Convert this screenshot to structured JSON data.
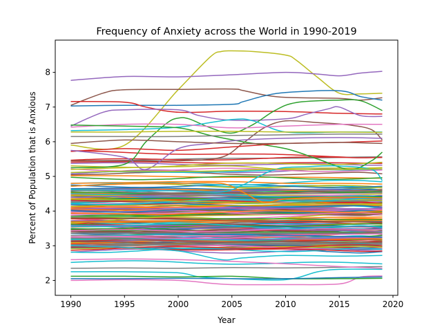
{
  "chart_data": {
    "type": "line",
    "title": "Frequency of Anxiety across the World in 1990-2019",
    "xlabel": "Year",
    "ylabel": "Percent of Population that is Anxious",
    "xlim": [
      1988.55,
      2020.45
    ],
    "ylim": [
      1.57,
      8.93
    ],
    "xticks": [
      1990,
      1995,
      2000,
      2005,
      2010,
      2015,
      2020
    ],
    "yticks": [
      2,
      3,
      4,
      5,
      6,
      7,
      8
    ],
    "grid": false,
    "legend": "none",
    "x_range": [
      1990,
      2019
    ],
    "highlighted_series": [
      {
        "color": "#bcbd22",
        "points": [
          [
            1990,
            5.9
          ],
          [
            1995,
            5.9
          ],
          [
            2000,
            7.5
          ],
          [
            2003,
            8.45
          ],
          [
            2004,
            8.6
          ],
          [
            2005,
            8.62
          ],
          [
            2007,
            8.6
          ],
          [
            2010,
            8.5
          ],
          [
            2011,
            8.35
          ],
          [
            2013,
            7.85
          ],
          [
            2015,
            7.4
          ],
          [
            2017,
            7.38
          ],
          [
            2019,
            7.4
          ]
        ]
      },
      {
        "color": "#9467bd",
        "points": [
          [
            1990,
            7.77
          ],
          [
            1995,
            7.88
          ],
          [
            2000,
            7.87
          ],
          [
            2005,
            7.93
          ],
          [
            2010,
            8.0
          ],
          [
            2013,
            7.95
          ],
          [
            2015,
            7.9
          ],
          [
            2017,
            7.98
          ],
          [
            2019,
            8.03
          ]
        ]
      },
      {
        "color": "#8c564b",
        "points": [
          [
            1990,
            7.05
          ],
          [
            1993,
            7.4
          ],
          [
            1995,
            7.5
          ],
          [
            2000,
            7.51
          ],
          [
            2005,
            7.52
          ],
          [
            2006,
            7.48
          ],
          [
            2008,
            7.35
          ],
          [
            2010,
            7.28
          ],
          [
            2015,
            7.25
          ],
          [
            2017,
            7.2
          ],
          [
            2019,
            7.27
          ]
        ]
      },
      {
        "color": "#1f77b4",
        "points": [
          [
            1990,
            7.03
          ],
          [
            1995,
            7.05
          ],
          [
            2000,
            7.05
          ],
          [
            2005,
            7.08
          ],
          [
            2006,
            7.15
          ],
          [
            2008,
            7.32
          ],
          [
            2010,
            7.42
          ],
          [
            2015,
            7.47
          ],
          [
            2017,
            7.3
          ],
          [
            2019,
            7.2
          ]
        ]
      },
      {
        "color": "#d62728",
        "points": [
          [
            1990,
            7.16
          ],
          [
            1995,
            7.14
          ],
          [
            1997,
            7.0
          ],
          [
            2000,
            6.85
          ],
          [
            2005,
            6.88
          ],
          [
            2010,
            6.87
          ],
          [
            2015,
            6.82
          ],
          [
            2019,
            6.8
          ]
        ]
      },
      {
        "color": "#9467bd",
        "points": [
          [
            1990,
            6.45
          ],
          [
            1993,
            6.85
          ],
          [
            1995,
            6.92
          ],
          [
            2000,
            6.92
          ],
          [
            2002,
            6.75
          ],
          [
            2005,
            6.62
          ],
          [
            2010,
            6.66
          ],
          [
            2012,
            6.8
          ],
          [
            2014,
            6.95
          ],
          [
            2015,
            7.0
          ],
          [
            2017,
            6.75
          ],
          [
            2019,
            6.73
          ]
        ]
      },
      {
        "color": "#2ca02c",
        "points": [
          [
            1990,
            5.25
          ],
          [
            1995,
            5.35
          ],
          [
            1997,
            6.0
          ],
          [
            1999,
            6.55
          ],
          [
            2000,
            6.68
          ],
          [
            2001,
            6.66
          ],
          [
            2003,
            6.4
          ],
          [
            2005,
            6.25
          ],
          [
            2007,
            6.5
          ],
          [
            2009,
            6.9
          ],
          [
            2011,
            7.13
          ],
          [
            2015,
            7.2
          ],
          [
            2017,
            7.18
          ],
          [
            2019,
            6.9
          ]
        ]
      },
      {
        "color": "#17becf",
        "points": [
          [
            1990,
            6.32
          ],
          [
            1995,
            6.35
          ],
          [
            2000,
            6.42
          ],
          [
            2005,
            6.64
          ],
          [
            2007,
            6.6
          ],
          [
            2010,
            6.28
          ],
          [
            2015,
            6.28
          ],
          [
            2019,
            6.28
          ]
        ]
      },
      {
        "color": "#8c564b",
        "points": [
          [
            1990,
            5.45
          ],
          [
            1995,
            5.45
          ],
          [
            2000,
            5.45
          ],
          [
            2004,
            5.55
          ],
          [
            2006,
            5.95
          ],
          [
            2008,
            6.4
          ],
          [
            2010,
            6.6
          ],
          [
            2013,
            6.55
          ],
          [
            2016,
            6.48
          ],
          [
            2018,
            6.35
          ],
          [
            2019,
            6.05
          ]
        ]
      },
      {
        "color": "#e377c2",
        "points": [
          [
            1990,
            6.42
          ],
          [
            1995,
            6.5
          ],
          [
            2000,
            6.5
          ],
          [
            2005,
            6.4
          ],
          [
            2010,
            6.45
          ],
          [
            2015,
            6.5
          ],
          [
            2019,
            6.5
          ]
        ]
      },
      {
        "color": "#2ca02c",
        "points": [
          [
            1990,
            6.48
          ],
          [
            1995,
            6.45
          ],
          [
            2000,
            6.4
          ],
          [
            2003,
            6.18
          ],
          [
            2006,
            6.0
          ],
          [
            2010,
            5.8
          ],
          [
            2013,
            5.5
          ],
          [
            2016,
            5.2
          ],
          [
            2018,
            5.45
          ],
          [
            2019,
            5.7
          ]
        ]
      },
      {
        "color": "#7f7f7f",
        "points": [
          [
            1990,
            6.15
          ],
          [
            1995,
            6.15
          ],
          [
            2000,
            6.15
          ],
          [
            2005,
            6.18
          ],
          [
            2010,
            6.2
          ],
          [
            2015,
            6.22
          ],
          [
            2019,
            6.22
          ]
        ]
      },
      {
        "color": "#d62728",
        "points": [
          [
            1990,
            5.72
          ],
          [
            1995,
            5.8
          ],
          [
            2000,
            5.75
          ],
          [
            2005,
            5.85
          ],
          [
            2010,
            5.95
          ],
          [
            2015,
            5.98
          ],
          [
            2019,
            6.02
          ]
        ]
      },
      {
        "color": "#9467bd",
        "points": [
          [
            1990,
            5.75
          ],
          [
            1995,
            5.55
          ],
          [
            1997,
            5.2
          ],
          [
            2000,
            5.8
          ],
          [
            2003,
            5.95
          ],
          [
            2006,
            6.05
          ],
          [
            2010,
            6.1
          ],
          [
            2015,
            6.12
          ],
          [
            2019,
            6.1
          ]
        ]
      },
      {
        "color": "#bcbd22",
        "points": [
          [
            1990,
            6.28
          ],
          [
            1995,
            6.28
          ],
          [
            2000,
            6.3
          ],
          [
            2005,
            6.3
          ],
          [
            2010,
            6.28
          ],
          [
            2015,
            6.28
          ],
          [
            2019,
            6.27
          ]
        ]
      },
      {
        "color": "#8c564b",
        "points": [
          [
            1990,
            5.95
          ],
          [
            1995,
            6.05
          ],
          [
            2000,
            6.0
          ],
          [
            2005,
            5.95
          ],
          [
            2010,
            5.95
          ],
          [
            2015,
            5.98
          ],
          [
            2019,
            5.95
          ]
        ]
      },
      {
        "color": "#ff7f0e",
        "points": [
          [
            1990,
            4.72
          ],
          [
            1995,
            4.78
          ],
          [
            2000,
            4.8
          ],
          [
            2004,
            4.8
          ],
          [
            2006,
            4.55
          ],
          [
            2008,
            4.25
          ],
          [
            2010,
            4.35
          ],
          [
            2015,
            4.4
          ],
          [
            2019,
            4.38
          ]
        ]
      },
      {
        "color": "#ff7f0e",
        "points": [
          [
            1990,
            4.8
          ],
          [
            1995,
            4.82
          ],
          [
            2000,
            4.85
          ],
          [
            2005,
            4.85
          ],
          [
            2010,
            4.8
          ],
          [
            2015,
            4.8
          ],
          [
            2019,
            4.78
          ]
        ]
      },
      {
        "color": "#17becf",
        "points": [
          [
            1990,
            4.62
          ],
          [
            1995,
            4.6
          ],
          [
            2000,
            4.58
          ],
          [
            2004,
            4.55
          ],
          [
            2006,
            4.75
          ],
          [
            2009,
            5.2
          ],
          [
            2012,
            5.28
          ],
          [
            2015,
            5.3
          ],
          [
            2018,
            5.2
          ],
          [
            2019,
            4.88
          ]
        ]
      },
      {
        "color": "#bcbd22",
        "points": [
          [
            1990,
            5.2
          ],
          [
            1995,
            5.25
          ],
          [
            2000,
            5.28
          ],
          [
            2005,
            5.3
          ],
          [
            2010,
            5.2
          ],
          [
            2015,
            5.2
          ],
          [
            2019,
            5.22
          ]
        ]
      },
      {
        "color": "#e377c2",
        "points": [
          [
            1990,
            2.0
          ],
          [
            1995,
            2.02
          ],
          [
            2000,
            2.0
          ],
          [
            2003,
            1.92
          ],
          [
            2005,
            1.88
          ],
          [
            2010,
            1.88
          ],
          [
            2015,
            1.9
          ],
          [
            2017,
            2.1
          ],
          [
            2019,
            2.13
          ]
        ]
      },
      {
        "color": "#17becf",
        "points": [
          [
            1990,
            2.25
          ],
          [
            1995,
            2.25
          ],
          [
            2000,
            2.22
          ],
          [
            2002,
            2.1
          ],
          [
            2005,
            2.05
          ],
          [
            2010,
            2.02
          ],
          [
            2013,
            2.25
          ],
          [
            2015,
            2.32
          ],
          [
            2019,
            2.32
          ]
        ]
      },
      {
        "color": "#2ca02c",
        "points": [
          [
            1990,
            2.12
          ],
          [
            1995,
            2.12
          ],
          [
            2000,
            2.1
          ],
          [
            2005,
            2.12
          ],
          [
            2010,
            2.05
          ],
          [
            2015,
            2.05
          ],
          [
            2019,
            2.06
          ]
        ]
      },
      {
        "color": "#7f7f7f",
        "points": [
          [
            1990,
            2.35
          ],
          [
            1995,
            2.36
          ],
          [
            2000,
            2.35
          ],
          [
            2005,
            2.37
          ],
          [
            2010,
            2.36
          ],
          [
            2015,
            2.38
          ],
          [
            2019,
            2.4
          ]
        ]
      },
      {
        "color": "#e377c2",
        "points": [
          [
            1990,
            2.6
          ],
          [
            1995,
            2.62
          ],
          [
            2000,
            2.6
          ],
          [
            2005,
            2.55
          ],
          [
            2010,
            2.48
          ],
          [
            2015,
            2.4
          ],
          [
            2019,
            2.35
          ]
        ]
      },
      {
        "color": "#1f77b4",
        "points": [
          [
            1990,
            2.05
          ],
          [
            1995,
            2.05
          ],
          [
            2000,
            2.06
          ],
          [
            2005,
            2.05
          ],
          [
            2010,
            2.05
          ],
          [
            2015,
            2.08
          ],
          [
            2019,
            2.1
          ]
        ]
      },
      {
        "color": "#17becf",
        "points": [
          [
            1990,
            3.0
          ],
          [
            1995,
            2.95
          ],
          [
            2000,
            2.85
          ],
          [
            2004,
            2.6
          ],
          [
            2006,
            2.65
          ],
          [
            2010,
            2.72
          ],
          [
            2015,
            2.7
          ],
          [
            2019,
            2.72
          ]
        ]
      }
    ],
    "bulk_series": {
      "count": 180,
      "value_range": [
        2.5,
        5.8
      ],
      "densest_range": [
        2.9,
        4.6
      ],
      "color_cycle": [
        "#1f77b4",
        "#ff7f0e",
        "#2ca02c",
        "#d62728",
        "#9467bd",
        "#8c564b",
        "#e377c2",
        "#7f7f7f",
        "#bcbd22",
        "#17becf"
      ]
    }
  }
}
